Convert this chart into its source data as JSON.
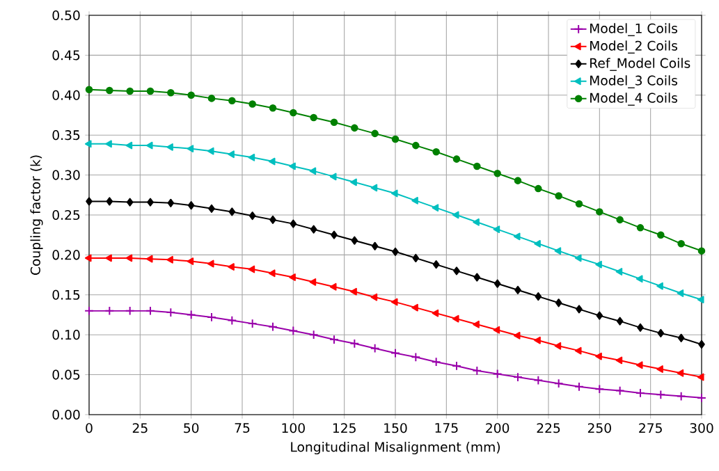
{
  "chart_data": {
    "type": "line",
    "xlabel": "Longitudinal Misalignment (mm)",
    "ylabel": "Coupling factor (k)",
    "x": [
      0,
      10,
      20,
      30,
      40,
      50,
      60,
      70,
      80,
      90,
      100,
      110,
      120,
      130,
      140,
      150,
      160,
      170,
      180,
      190,
      200,
      210,
      220,
      230,
      240,
      250,
      260,
      270,
      280,
      290,
      300
    ],
    "series": [
      {
        "name": "Model_1 Coils",
        "color": "#9900aa",
        "marker": "cross",
        "values": [
          0.13,
          0.13,
          0.13,
          0.13,
          0.128,
          0.125,
          0.122,
          0.118,
          0.114,
          0.11,
          0.105,
          0.1,
          0.094,
          0.089,
          0.083,
          0.077,
          0.072,
          0.066,
          0.061,
          0.055,
          0.051,
          0.047,
          0.043,
          0.039,
          0.035,
          0.032,
          0.03,
          0.027,
          0.025,
          0.023,
          0.021
        ]
      },
      {
        "name": "Model_2 Coils",
        "color": "#ff0000",
        "marker": "triangle",
        "values": [
          0.196,
          0.196,
          0.196,
          0.195,
          0.194,
          0.192,
          0.189,
          0.185,
          0.182,
          0.177,
          0.172,
          0.166,
          0.16,
          0.154,
          0.147,
          0.141,
          0.134,
          0.127,
          0.12,
          0.113,
          0.106,
          0.099,
          0.093,
          0.086,
          0.08,
          0.073,
          0.068,
          0.062,
          0.057,
          0.052,
          0.047
        ]
      },
      {
        "name": "Ref_Model Coils",
        "color": "#000000",
        "marker": "diamond",
        "values": [
          0.267,
          0.267,
          0.266,
          0.266,
          0.265,
          0.262,
          0.258,
          0.254,
          0.249,
          0.244,
          0.239,
          0.232,
          0.225,
          0.218,
          0.211,
          0.204,
          0.196,
          0.188,
          0.18,
          0.172,
          0.164,
          0.156,
          0.148,
          0.14,
          0.132,
          0.124,
          0.117,
          0.109,
          0.102,
          0.096,
          0.088
        ]
      },
      {
        "name": "Model_3 Coils",
        "color": "#00bfbf",
        "marker": "triangle",
        "values": [
          0.339,
          0.339,
          0.337,
          0.337,
          0.335,
          0.333,
          0.33,
          0.326,
          0.322,
          0.317,
          0.311,
          0.305,
          0.298,
          0.291,
          0.284,
          0.277,
          0.268,
          0.259,
          0.25,
          0.241,
          0.232,
          0.223,
          0.214,
          0.205,
          0.196,
          0.188,
          0.179,
          0.17,
          0.161,
          0.152,
          0.144
        ]
      },
      {
        "name": "Model_4 Coils",
        "color": "#008000",
        "marker": "circle",
        "values": [
          0.407,
          0.406,
          0.405,
          0.405,
          0.403,
          0.4,
          0.396,
          0.393,
          0.389,
          0.384,
          0.378,
          0.372,
          0.366,
          0.359,
          0.352,
          0.345,
          0.337,
          0.329,
          0.32,
          0.311,
          0.302,
          0.293,
          0.283,
          0.274,
          0.264,
          0.254,
          0.244,
          0.234,
          0.225,
          0.214,
          0.205
        ]
      }
    ],
    "xlim": [
      0,
      300
    ],
    "xticks": [
      0,
      25,
      50,
      75,
      100,
      125,
      150,
      175,
      200,
      225,
      250,
      275,
      300
    ],
    "ylim": [
      0,
      0.5
    ],
    "yticks": [
      {
        "value": 0,
        "label": "0.00"
      },
      {
        "value": 0.05,
        "label": "0.05"
      },
      {
        "value": 0.1,
        "label": "0.10"
      },
      {
        "value": 0.15,
        "label": "0.15"
      },
      {
        "value": 0.2,
        "label": "0.20"
      },
      {
        "value": 0.25,
        "label": "0.25"
      },
      {
        "value": 0.3,
        "label": "0.30"
      },
      {
        "value": 0.35,
        "label": "0.35"
      },
      {
        "value": 0.4,
        "label": "0.40"
      },
      {
        "value": 0.45,
        "label": "0.45"
      },
      {
        "value": 0.5,
        "label": "0.50"
      }
    ],
    "grid": true,
    "legend": "top right",
    "line_style": "solid"
  }
}
